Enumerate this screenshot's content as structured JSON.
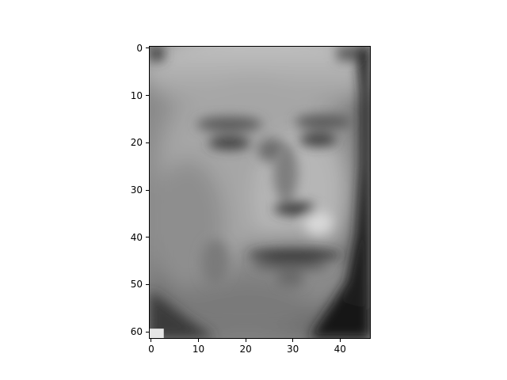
{
  "chart_data": {
    "type": "heatmap",
    "title": "",
    "xlabel": "",
    "ylabel": "",
    "image_shape": [
      62,
      47
    ],
    "colormap": "gray",
    "y_axis_inverted": true,
    "x_ticks": [
      "0",
      "10",
      "20",
      "30",
      "40"
    ],
    "y_ticks": [
      "0",
      "10",
      "20",
      "30",
      "40",
      "50",
      "60"
    ],
    "xlim": [
      -0.5,
      46.5
    ],
    "ylim": [
      61.5,
      -0.5
    ],
    "grid": false,
    "legend": "none"
  }
}
